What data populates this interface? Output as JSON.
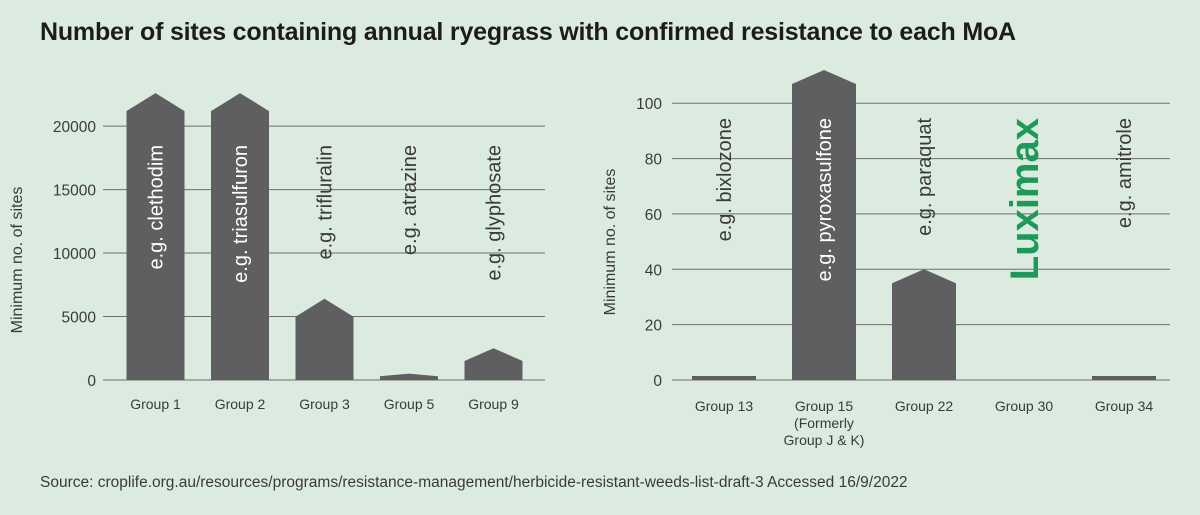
{
  "title": "Number of sites containing annual ryegrass with confirmed resistance to each MoA",
  "source": "Source: croplife.org.au/resources/programs/resistance-management/herbicide-resistant-weeds-list-draft-3 Accessed 16/9/2022",
  "colors": {
    "background": "#dcebdf",
    "bar": "#5f5f62",
    "gridline": "#6e6e6e",
    "text": "#3a3a3a",
    "brand": "#1d9a57"
  },
  "chart_data": [
    {
      "type": "bar",
      "xlabel": "",
      "ylabel": "Minimum no. of sites",
      "ylim": [
        0,
        23000
      ],
      "yticks": [
        0,
        5000,
        10000,
        15000,
        20000
      ],
      "grid": true,
      "categories": [
        "Group 1",
        "Group 2",
        "Group 3",
        "Group 5",
        "Group 9"
      ],
      "values": [
        22600,
        22600,
        6400,
        500,
        2500
      ],
      "bar_labels": [
        "e.g. clethodim",
        "e.g. triasulfuron",
        "e.g. trifluralin",
        "e.g. atrazine",
        "e.g. glyphosate"
      ]
    },
    {
      "type": "bar",
      "xlabel": "",
      "ylabel": "Minimum no. of sites",
      "ylim": [
        0,
        112
      ],
      "yticks": [
        0,
        20,
        40,
        60,
        80,
        100
      ],
      "grid": true,
      "categories": [
        "Group 13",
        "Group 15 (Formerly Group J & K)",
        "Group 22",
        "Group 30",
        "Group 34"
      ],
      "values": [
        1,
        112,
        40,
        0,
        1
      ],
      "bar_labels": [
        "e.g. bixlozone",
        "e.g. pyroxasulfone",
        "e.g. paraquat",
        "Luximax",
        "e.g. amitrole"
      ]
    }
  ]
}
